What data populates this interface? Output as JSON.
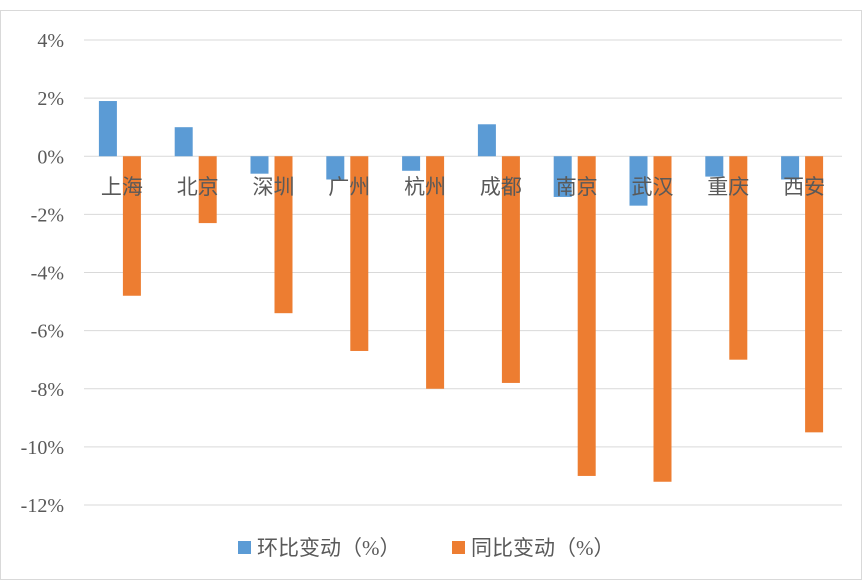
{
  "chart_data": {
    "type": "bar",
    "categories": [
      "上海",
      "北京",
      "深圳",
      "广州",
      "杭州",
      "成都",
      "南京",
      "武汉",
      "重庆",
      "西安"
    ],
    "series": [
      {
        "name": "环比变动（%）",
        "color": "#5B9BD5",
        "values": [
          1.9,
          1.0,
          -0.6,
          -0.8,
          -0.5,
          1.1,
          -1.4,
          -1.7,
          -0.7,
          -0.8
        ]
      },
      {
        "name": "同比变动（%）",
        "color": "#ED7D31",
        "values": [
          -4.8,
          -2.3,
          -5.4,
          -6.7,
          -8.0,
          -7.8,
          -11.0,
          -11.2,
          -7.0,
          -9.5
        ]
      }
    ],
    "ylim": [
      -12,
      4
    ],
    "yticks": [
      4,
      2,
      0,
      -2,
      -4,
      -6,
      -8,
      -10,
      -12
    ],
    "ytick_format": "%",
    "grid": true,
    "grid_color": "#d9d9d9",
    "legend_position": "bottom",
    "title": "",
    "xlabel": "",
    "ylabel": ""
  }
}
